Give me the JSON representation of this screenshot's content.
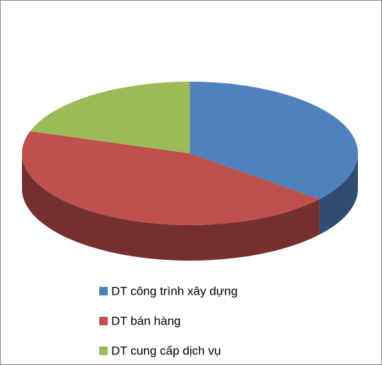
{
  "chart_data": {
    "type": "pie",
    "categories": [
      "DT công trình xây dựng",
      "DT bán hàng",
      "DT cung cấp dịch vụ"
    ],
    "values": [
      36,
      44,
      20
    ],
    "colors": [
      "#4f81bd",
      "#c0504d",
      "#9bbb59"
    ]
  }
}
